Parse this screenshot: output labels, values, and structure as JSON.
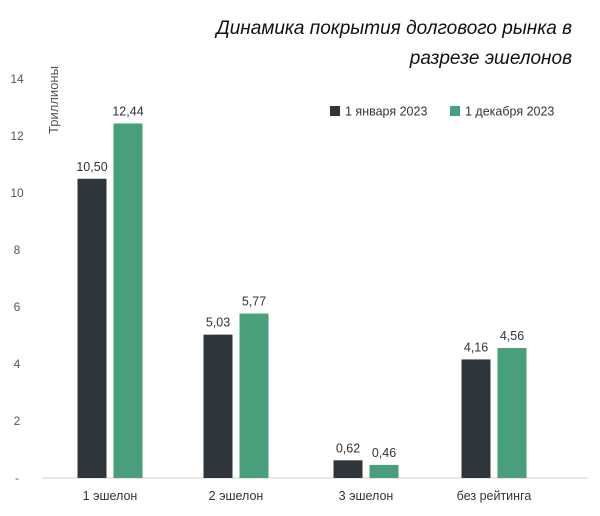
{
  "chart_data": {
    "type": "bar",
    "title": "Динамика покрытия долгового рынка в разрезе эшелонов",
    "ylabel": "Триллионы",
    "ylim": [
      0,
      14
    ],
    "yticks": [
      "-",
      "2",
      "4",
      "6",
      "8",
      "10",
      "12",
      "14"
    ],
    "categories": [
      "1 эшелон",
      "2 эшелон",
      "3 эшелон",
      "без рейтинга"
    ],
    "series": [
      {
        "name": "1 января 2023",
        "color": "#2f363b",
        "values": [
          10.5,
          5.03,
          0.62,
          4.16
        ],
        "labels": [
          "10,50",
          "5,03",
          "0,62",
          "4,16"
        ]
      },
      {
        "name": "1 декабря 2023",
        "color": "#47a07a",
        "values": [
          12.44,
          5.77,
          0.46,
          4.56
        ],
        "labels": [
          "12,44",
          "5,77",
          "0,46",
          "4,56"
        ]
      }
    ],
    "legend_position": "top-right",
    "grid": false
  }
}
